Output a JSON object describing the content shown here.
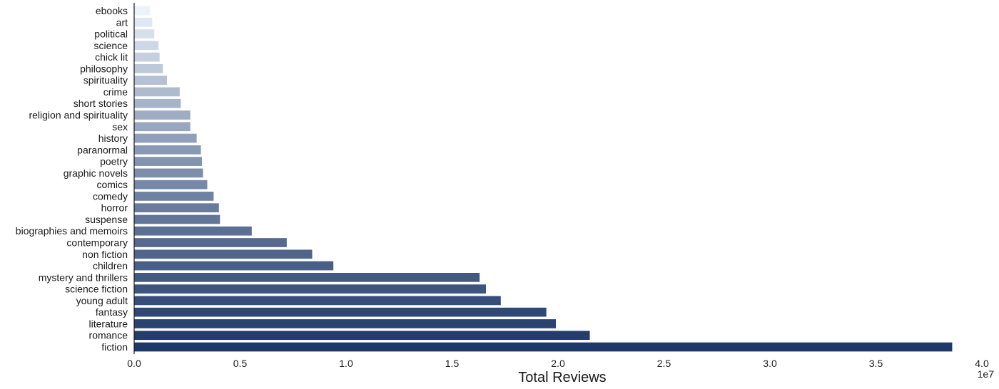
{
  "chart_data": {
    "type": "bar",
    "orientation": "horizontal",
    "xlabel": "Total Reviews",
    "ylabel": "",
    "xlim": [
      0,
      40000000
    ],
    "x_ticks": [
      0,
      5000000,
      10000000,
      15000000,
      20000000,
      25000000,
      30000000,
      35000000,
      40000000
    ],
    "x_tick_labels": [
      "0.0",
      "0.5",
      "1.0",
      "1.5",
      "2.0",
      "2.5",
      "3.0",
      "3.5",
      "4.0"
    ],
    "x_offset_label": "1e7",
    "grid": false,
    "legend": "none",
    "colormap": "light blue to dark navy (Blues), darker for larger values",
    "categories": [
      "ebooks",
      "art",
      "political",
      "science",
      "chick lit",
      "philosophy",
      "spirituality",
      "crime",
      "short stories",
      "religion and spirituality",
      "sex",
      "history",
      "paranormal",
      "poetry",
      "graphic novels",
      "comics",
      "comedy",
      "horror",
      "suspense",
      "biographies and memoirs",
      "contemporary",
      "non fiction",
      "children",
      "mystery and thrillers",
      "science fiction",
      "young adult",
      "fantasy",
      "literature",
      "romance",
      "fiction"
    ],
    "values": [
      750000,
      850000,
      950000,
      1150000,
      1200000,
      1350000,
      1550000,
      2150000,
      2200000,
      2650000,
      2650000,
      2950000,
      3150000,
      3200000,
      3250000,
      3450000,
      3750000,
      4000000,
      4050000,
      5550000,
      7200000,
      8400000,
      9400000,
      16300000,
      16600000,
      17300000,
      19450000,
      19900000,
      21500000,
      38600000
    ]
  }
}
